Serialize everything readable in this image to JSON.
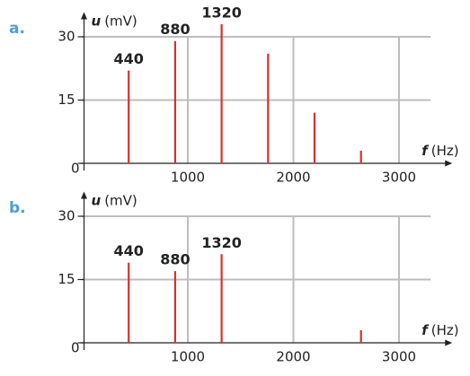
{
  "chart_data": [
    {
      "type": "stem",
      "panel": "a.",
      "y_label": {
        "symbol": "u",
        "unit": "(mV)"
      },
      "x_label": {
        "symbol": "f",
        "unit": "(Hz)"
      },
      "x": [
        440,
        880,
        1320,
        1760,
        2200,
        2640
      ],
      "values": [
        22,
        29,
        33,
        26,
        12,
        3
      ],
      "annotations": [
        440,
        880,
        1320
      ],
      "color": "#d9302c",
      "xlim": [
        0,
        3300
      ],
      "ylim": [
        0,
        35
      ],
      "xticks": [
        1000,
        2000,
        3000
      ],
      "yticks": [
        0,
        15,
        30
      ],
      "grid": true
    },
    {
      "type": "stem",
      "panel": "b.",
      "y_label": {
        "symbol": "u",
        "unit": "(mV)"
      },
      "x_label": {
        "symbol": "f",
        "unit": "(Hz)"
      },
      "x": [
        440,
        880,
        1320,
        2640
      ],
      "values": [
        19,
        17,
        21,
        3
      ],
      "annotations": [
        440,
        880,
        1320
      ],
      "color": "#d9302c",
      "xlim": [
        0,
        3300
      ],
      "ylim": [
        0,
        35
      ],
      "xticks": [
        1000,
        2000,
        3000
      ],
      "yticks": [
        0,
        15,
        30
      ],
      "grid": true
    }
  ]
}
